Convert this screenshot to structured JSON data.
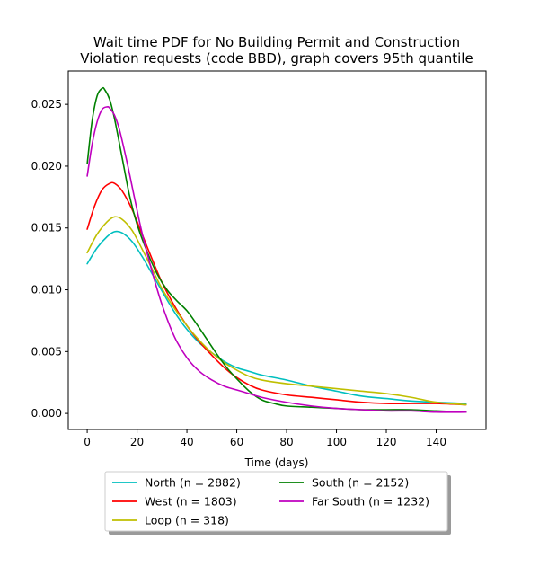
{
  "chart_data": {
    "type": "line",
    "title_lines": [
      "Wait time PDF for No Building Permit and Construction",
      "Violation  requests (code BBD), graph covers 95th quantile"
    ],
    "xlabel": "Time (days)",
    "ylabel": "",
    "xlim": [
      -7.6,
      160
    ],
    "ylim": [
      -0.0013,
      0.0277
    ],
    "xticks": [
      0,
      20,
      40,
      60,
      80,
      100,
      120,
      140
    ],
    "xtick_labels": [
      "0",
      "20",
      "40",
      "60",
      "80",
      "100",
      "120",
      "140"
    ],
    "yticks": [
      0.0,
      0.005,
      0.01,
      0.015,
      0.02,
      0.025
    ],
    "ytick_labels": [
      "0.000",
      "0.005",
      "0.010",
      "0.015",
      "0.020",
      "0.025"
    ],
    "grid": false,
    "legend_position": "below",
    "legend_columns": 2,
    "series": [
      {
        "name": "North (n = 2882)",
        "color": "#00bfbf",
        "x": [
          0,
          4,
          8,
          11,
          14,
          18,
          22,
          26,
          30,
          35,
          40,
          45,
          50,
          55,
          60,
          65,
          70,
          80,
          90,
          100,
          110,
          120,
          130,
          140,
          152
        ],
        "y": [
          0.0121,
          0.0134,
          0.0143,
          0.0147,
          0.0146,
          0.0139,
          0.0127,
          0.0113,
          0.0099,
          0.0082,
          0.0068,
          0.0057,
          0.0049,
          0.0042,
          0.0037,
          0.0034,
          0.0031,
          0.0027,
          0.0022,
          0.0018,
          0.0014,
          0.0012,
          0.001,
          0.0009,
          0.0008
        ]
      },
      {
        "name": "West (n = 1803)",
        "color": "#ff0000",
        "x": [
          0,
          3,
          6,
          9,
          11,
          14,
          18,
          22,
          26,
          30,
          35,
          40,
          45,
          50,
          55,
          60,
          65,
          70,
          80,
          90,
          100,
          110,
          120,
          130,
          140,
          152
        ],
        "y": [
          0.0149,
          0.0168,
          0.0181,
          0.0186,
          0.0186,
          0.018,
          0.0165,
          0.0145,
          0.0125,
          0.0106,
          0.0087,
          0.0071,
          0.0058,
          0.0047,
          0.0037,
          0.0029,
          0.0023,
          0.0019,
          0.0015,
          0.0013,
          0.0011,
          0.0009,
          0.0008,
          0.0008,
          0.0008,
          0.0007
        ]
      },
      {
        "name": "Loop (n = 318)",
        "color": "#bfbf00",
        "x": [
          0,
          4,
          8,
          11,
          14,
          18,
          22,
          26,
          30,
          35,
          40,
          45,
          50,
          55,
          60,
          65,
          70,
          80,
          90,
          100,
          110,
          120,
          130,
          140,
          152
        ],
        "y": [
          0.013,
          0.0145,
          0.0155,
          0.0159,
          0.0157,
          0.0148,
          0.0133,
          0.0117,
          0.0101,
          0.0085,
          0.0071,
          0.0059,
          0.0049,
          0.0041,
          0.0035,
          0.003,
          0.0027,
          0.0024,
          0.0022,
          0.002,
          0.0018,
          0.0016,
          0.0013,
          0.0009,
          0.0007
        ]
      },
      {
        "name": "South (n = 2152)",
        "color": "#008000",
        "x": [
          0,
          2,
          4,
          6,
          7,
          9,
          11,
          14,
          17,
          20,
          24,
          28,
          32,
          36,
          40,
          44,
          48,
          52,
          56,
          60,
          65,
          70,
          75,
          80,
          90,
          100,
          110,
          120,
          130,
          140,
          152
        ],
        "y": [
          0.0202,
          0.0237,
          0.0257,
          0.0263,
          0.0262,
          0.0254,
          0.0238,
          0.0207,
          0.0176,
          0.0153,
          0.0131,
          0.0113,
          0.01,
          0.0091,
          0.0083,
          0.0072,
          0.006,
          0.0048,
          0.0037,
          0.0028,
          0.0018,
          0.0011,
          0.0008,
          0.0006,
          0.0005,
          0.0004,
          0.0003,
          0.0003,
          0.0003,
          0.0002,
          0.0001
        ]
      },
      {
        "name": "Far South (n = 1232)",
        "color": "#bf00bf",
        "x": [
          0,
          2,
          4,
          6,
          8,
          9,
          11,
          13,
          16,
          19,
          22,
          26,
          30,
          35,
          40,
          45,
          50,
          55,
          60,
          65,
          70,
          80,
          90,
          100,
          110,
          120,
          130,
          140,
          152
        ],
        "y": [
          0.0192,
          0.0218,
          0.0236,
          0.0246,
          0.0248,
          0.0247,
          0.0241,
          0.0229,
          0.0203,
          0.0174,
          0.0146,
          0.0115,
          0.0088,
          0.0062,
          0.0045,
          0.0034,
          0.0027,
          0.0022,
          0.0019,
          0.0016,
          0.0013,
          0.0009,
          0.0006,
          0.0004,
          0.0003,
          0.0002,
          0.0002,
          0.0001,
          0.0001
        ]
      }
    ]
  }
}
